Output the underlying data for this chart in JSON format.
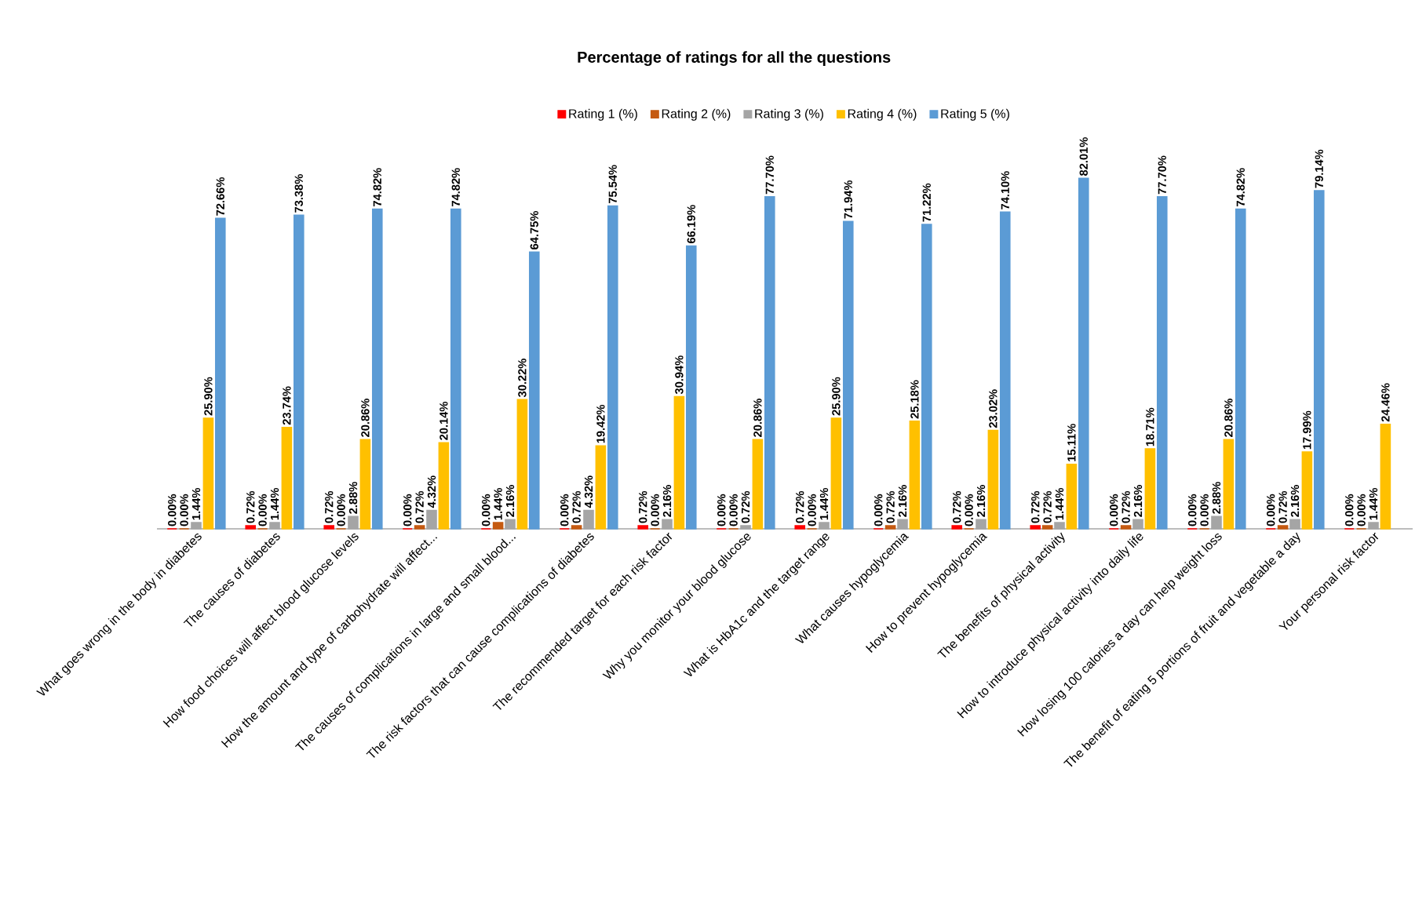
{
  "chart_data": {
    "type": "bar",
    "title": "Percentage of ratings for all the questions",
    "categories": [
      "What goes wrong in the body in diabetes",
      "The causes of diabetes",
      "How food choices will affect blood glucose levels",
      "How the amount and type of carbohydrate will affect...",
      "The causes of complications in large and small blood...",
      "The risk factors that can cause complications of diabetes",
      "The recommended target for each risk factor",
      "Why you monitor your blood glucose",
      "What is HbA1c and the target range",
      "What causes hypoglycemia",
      "How to prevent hypoglycemia",
      "The benefits of physical activity",
      "How to introduce physical activity into daily life",
      "How losing 100 calories a day can help weight loss",
      "The benefit of eating 5 portions of fruit and vegetable a day",
      "Your personal risk factor"
    ],
    "series": [
      {
        "name": "Rating 1 (%)",
        "color": "#ff0000",
        "values": [
          0,
          0.72,
          0.72,
          0,
          0,
          0,
          0.72,
          0,
          0.72,
          0,
          0.72,
          0.72,
          0,
          0,
          0,
          0
        ],
        "value_labels": [
          "0.00%",
          "0.72%",
          "0.72%",
          "0.00%",
          "0.00%",
          "0.00%",
          "0.72%",
          "0.00%",
          "0.72%",
          "0.00%",
          "0.72%",
          "0.72%",
          "0.00%",
          "0.00%",
          "0.00%",
          "0.00%"
        ]
      },
      {
        "name": "Rating 2 (%)",
        "color": "#c55a11",
        "values": [
          0,
          0,
          0,
          0.72,
          1.44,
          0.72,
          0,
          0,
          0,
          0.72,
          0,
          0.72,
          0.72,
          0,
          0.72,
          0
        ],
        "value_labels": [
          "0.00%",
          "0.00%",
          "0.00%",
          "0.72%",
          "1.44%",
          "0.72%",
          "0.00%",
          "0.00%",
          "0.00%",
          "0.72%",
          "0.00%",
          "0.72%",
          "0.72%",
          "0.00%",
          "0.72%",
          "0.00%"
        ]
      },
      {
        "name": "Rating 3 (%)",
        "color": "#a5a5a5",
        "values": [
          1.44,
          1.44,
          2.88,
          4.32,
          2.16,
          4.32,
          2.16,
          0.72,
          1.44,
          2.16,
          2.16,
          1.44,
          2.16,
          2.88,
          2.16,
          1.44
        ],
        "value_labels": [
          "1.44%",
          "1.44%",
          "2.88%",
          "4.32%",
          "2.16%",
          "4.32%",
          "2.16%",
          "0.72%",
          "1.44%",
          "2.16%",
          "2.16%",
          "1.44%",
          "2.16%",
          "2.88%",
          "2.16%",
          "1.44%"
        ]
      },
      {
        "name": "Rating 4 (%)",
        "color": "#ffc000",
        "values": [
          25.9,
          23.74,
          20.86,
          20.14,
          30.22,
          19.42,
          30.94,
          20.86,
          25.9,
          25.18,
          23.02,
          15.11,
          18.71,
          20.86,
          17.99,
          24.46
        ],
        "value_labels": [
          "25.90%",
          "23.74%",
          "20.86%",
          "20.14%",
          "30.22%",
          "19.42%",
          "30.94%",
          "20.86%",
          "25.90%",
          "25.18%",
          "23.02%",
          "15.11%",
          "18.71%",
          "20.86%",
          "17.99%",
          "24.46%"
        ]
      },
      {
        "name": "Rating 5 (%)",
        "color": "#5b9bd5",
        "values": [
          72.66,
          73.38,
          74.82,
          74.82,
          64.75,
          75.54,
          66.19,
          77.7,
          71.94,
          71.22,
          74.1,
          82.01,
          77.7,
          74.82,
          79.14,
          null
        ],
        "value_labels": [
          "72.66%",
          "73.38%",
          "74.82%",
          "74.82%",
          "64.75%",
          "75.54%",
          "66.19%",
          "77.70%",
          "71.94%",
          "71.22%",
          "74.10%",
          "82.01%",
          "77.70%",
          "74.82%",
          "79.14%",
          null
        ]
      }
    ],
    "legend": "top"
  }
}
